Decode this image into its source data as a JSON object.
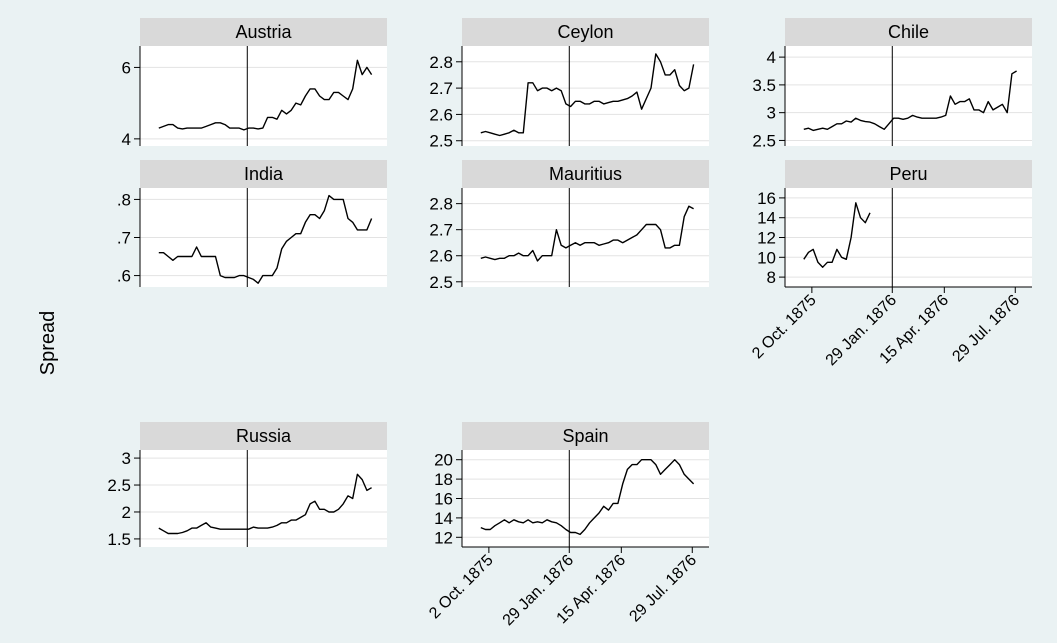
{
  "chart_data": {
    "type": "line",
    "layout": "small-multiples",
    "ylabel": "Spread",
    "xlabel": "",
    "x_ticks": [
      "2 Oct. 1875",
      "29 Jan. 1876",
      "15 Apr. 1876",
      "29 Jul. 1876"
    ],
    "event_line_x": "29 Jan. 1876",
    "grid": true,
    "line_color": "#000000",
    "background_color": "#eaf2f3",
    "panel_color": "#ffffff",
    "header_color": "#d9d9d9",
    "panels": [
      {
        "title": "Austria",
        "yticks": [
          "4",
          "6"
        ],
        "ytick_values": [
          4,
          6
        ],
        "ylim": [
          3.8,
          6.6
        ],
        "x": [
          "1875-09-20",
          "1875-09-27",
          "1875-10-04",
          "1875-10-11",
          "1875-10-18",
          "1875-10-25",
          "1875-11-01",
          "1875-11-08",
          "1875-11-15",
          "1875-11-22",
          "1875-11-29",
          "1875-12-06",
          "1875-12-13",
          "1875-12-20",
          "1875-12-27",
          "1876-01-03",
          "1876-01-10",
          "1876-01-17",
          "1876-01-24",
          "1876-01-31",
          "1876-02-07",
          "1876-02-14",
          "1876-02-21",
          "1876-02-28",
          "1876-03-06",
          "1876-03-13",
          "1876-03-20",
          "1876-03-27",
          "1876-04-03",
          "1876-04-10",
          "1876-04-17",
          "1876-04-24",
          "1876-05-01",
          "1876-05-08",
          "1876-05-15",
          "1876-05-22",
          "1876-05-29",
          "1876-06-05",
          "1876-06-12",
          "1876-06-19",
          "1876-06-26",
          "1876-07-03",
          "1876-07-10",
          "1876-07-17",
          "1876-07-24",
          "1876-07-31"
        ],
        "y": [
          4.3,
          4.35,
          4.4,
          4.4,
          4.3,
          4.28,
          4.3,
          4.3,
          4.3,
          4.3,
          4.35,
          4.4,
          4.45,
          4.45,
          4.4,
          4.3,
          4.3,
          4.3,
          4.25,
          4.3,
          4.3,
          4.28,
          4.3,
          4.6,
          4.6,
          4.55,
          4.8,
          4.7,
          4.8,
          5.0,
          4.95,
          5.2,
          5.4,
          5.4,
          5.2,
          5.1,
          5.1,
          5.3,
          5.3,
          5.2,
          5.1,
          5.4,
          6.2,
          5.8,
          6.0,
          5.8
        ]
      },
      {
        "title": "Ceylon",
        "yticks": [
          "2.5",
          "2.6",
          "2.7",
          "2.8"
        ],
        "ytick_values": [
          2.5,
          2.6,
          2.7,
          2.8
        ],
        "ylim": [
          2.48,
          2.86
        ],
        "x": [
          "1875-09-20",
          "1875-09-27",
          "1875-10-04",
          "1875-10-11",
          "1875-10-18",
          "1875-10-25",
          "1875-11-01",
          "1875-11-08",
          "1875-11-15",
          "1875-11-22",
          "1875-11-29",
          "1875-12-06",
          "1875-12-13",
          "1875-12-20",
          "1875-12-27",
          "1876-01-03",
          "1876-01-10",
          "1876-01-17",
          "1876-01-24",
          "1876-01-31",
          "1876-02-07",
          "1876-02-14",
          "1876-02-21",
          "1876-02-28",
          "1876-03-06",
          "1876-03-13",
          "1876-03-20",
          "1876-03-27",
          "1876-04-03",
          "1876-04-10",
          "1876-04-17",
          "1876-04-24",
          "1876-05-01",
          "1876-05-08",
          "1876-05-15",
          "1876-05-22",
          "1876-05-29",
          "1876-06-05",
          "1876-06-12",
          "1876-06-19",
          "1876-06-26",
          "1876-07-03",
          "1876-07-10",
          "1876-07-17",
          "1876-07-24",
          "1876-07-31"
        ],
        "y": [
          2.53,
          2.535,
          2.53,
          2.525,
          2.52,
          2.525,
          2.53,
          2.54,
          2.53,
          2.53,
          2.72,
          2.72,
          2.69,
          2.7,
          2.7,
          2.69,
          2.7,
          2.69,
          2.64,
          2.63,
          2.65,
          2.65,
          2.64,
          2.64,
          2.65,
          2.65,
          2.64,
          2.645,
          2.65,
          2.65,
          2.655,
          2.66,
          2.67,
          2.685,
          2.62,
          2.66,
          2.7,
          2.83,
          2.8,
          2.75,
          2.75,
          2.77,
          2.71,
          2.69,
          2.7,
          2.79
        ]
      },
      {
        "title": "Chile",
        "yticks": [
          "2.5",
          "3",
          "3.5",
          "4"
        ],
        "ytick_values": [
          2.5,
          3,
          3.5,
          4
        ],
        "ylim": [
          2.4,
          4.2
        ],
        "x": [
          "1875-09-20",
          "1875-09-27",
          "1875-10-04",
          "1875-10-11",
          "1875-10-18",
          "1875-10-25",
          "1875-11-01",
          "1875-11-08",
          "1875-11-15",
          "1875-11-22",
          "1875-11-29",
          "1875-12-06",
          "1875-12-13",
          "1875-12-20",
          "1875-12-27",
          "1876-01-03",
          "1876-01-10",
          "1876-01-17",
          "1876-01-24",
          "1876-01-31",
          "1876-02-07",
          "1876-02-14",
          "1876-02-21",
          "1876-02-28",
          "1876-03-06",
          "1876-03-13",
          "1876-03-20",
          "1876-03-27",
          "1876-04-03",
          "1876-04-10",
          "1876-04-17",
          "1876-04-24",
          "1876-05-01",
          "1876-05-08",
          "1876-05-15",
          "1876-05-22",
          "1876-05-29",
          "1876-06-05",
          "1876-06-12",
          "1876-06-19",
          "1876-06-26",
          "1876-07-03",
          "1876-07-10",
          "1876-07-17",
          "1876-07-24",
          "1876-07-31"
        ],
        "y": [
          2.7,
          2.72,
          2.68,
          2.7,
          2.72,
          2.7,
          2.75,
          2.8,
          2.8,
          2.85,
          2.83,
          2.9,
          2.86,
          2.84,
          2.83,
          2.8,
          2.75,
          2.7,
          2.8,
          2.9,
          2.9,
          2.88,
          2.9,
          2.95,
          2.92,
          2.9,
          2.9,
          2.9,
          2.9,
          2.92,
          2.95,
          3.3,
          3.15,
          3.2,
          3.2,
          3.25,
          3.05,
          3.05,
          3.0,
          3.2,
          3.05,
          3.1,
          3.15,
          3.0,
          3.7,
          3.75
        ]
      },
      {
        "title": "India",
        "yticks": [
          ".6",
          ".7",
          ".8"
        ],
        "ytick_values": [
          0.6,
          0.7,
          0.8
        ],
        "ylim": [
          0.57,
          0.83
        ],
        "x": [
          "1875-09-20",
          "1875-09-27",
          "1875-10-04",
          "1875-10-11",
          "1875-10-18",
          "1875-10-25",
          "1875-11-01",
          "1875-11-08",
          "1875-11-15",
          "1875-11-22",
          "1875-11-29",
          "1875-12-06",
          "1875-12-13",
          "1875-12-20",
          "1875-12-27",
          "1876-01-03",
          "1876-01-10",
          "1876-01-17",
          "1876-01-24",
          "1876-01-31",
          "1876-02-07",
          "1876-02-14",
          "1876-02-21",
          "1876-02-28",
          "1876-03-06",
          "1876-03-13",
          "1876-03-20",
          "1876-03-27",
          "1876-04-03",
          "1876-04-10",
          "1876-04-17",
          "1876-04-24",
          "1876-05-01",
          "1876-05-08",
          "1876-05-15",
          "1876-05-22",
          "1876-05-29",
          "1876-06-05",
          "1876-06-12",
          "1876-06-19",
          "1876-06-26",
          "1876-07-03",
          "1876-07-10",
          "1876-07-17",
          "1876-07-24",
          "1876-07-31"
        ],
        "y": [
          0.66,
          0.66,
          0.65,
          0.64,
          0.65,
          0.65,
          0.65,
          0.65,
          0.675,
          0.65,
          0.65,
          0.65,
          0.65,
          0.6,
          0.595,
          0.595,
          0.595,
          0.6,
          0.6,
          0.595,
          0.59,
          0.58,
          0.6,
          0.6,
          0.6,
          0.62,
          0.67,
          0.69,
          0.7,
          0.71,
          0.71,
          0.74,
          0.76,
          0.76,
          0.75,
          0.77,
          0.81,
          0.8,
          0.8,
          0.8,
          0.75,
          0.74,
          0.72,
          0.72,
          0.72,
          0.75
        ]
      },
      {
        "title": "Mauritius",
        "yticks": [
          "2.5",
          "2.6",
          "2.7",
          "2.8"
        ],
        "ytick_values": [
          2.5,
          2.6,
          2.7,
          2.8
        ],
        "ylim": [
          2.48,
          2.86
        ],
        "x": [
          "1875-09-20",
          "1875-09-27",
          "1875-10-04",
          "1875-10-11",
          "1875-10-18",
          "1875-10-25",
          "1875-11-01",
          "1875-11-08",
          "1875-11-15",
          "1875-11-22",
          "1875-11-29",
          "1875-12-06",
          "1875-12-13",
          "1875-12-20",
          "1875-12-27",
          "1876-01-03",
          "1876-01-10",
          "1876-01-17",
          "1876-01-24",
          "1876-01-31",
          "1876-02-07",
          "1876-02-14",
          "1876-02-21",
          "1876-02-28",
          "1876-03-06",
          "1876-03-13",
          "1876-03-20",
          "1876-03-27",
          "1876-04-03",
          "1876-04-10",
          "1876-04-17",
          "1876-04-24",
          "1876-05-01",
          "1876-05-08",
          "1876-05-15",
          "1876-05-22",
          "1876-05-29",
          "1876-06-05",
          "1876-06-12",
          "1876-06-19",
          "1876-06-26",
          "1876-07-03",
          "1876-07-10",
          "1876-07-17",
          "1876-07-24",
          "1876-07-31"
        ],
        "y": [
          2.59,
          2.595,
          2.59,
          2.585,
          2.59,
          2.59,
          2.6,
          2.6,
          2.61,
          2.6,
          2.6,
          2.62,
          2.58,
          2.6,
          2.6,
          2.6,
          2.7,
          2.64,
          2.63,
          2.64,
          2.65,
          2.64,
          2.65,
          2.65,
          2.65,
          2.64,
          2.645,
          2.65,
          2.66,
          2.66,
          2.65,
          2.66,
          2.67,
          2.68,
          2.7,
          2.72,
          2.72,
          2.72,
          2.7,
          2.63,
          2.63,
          2.64,
          2.64,
          2.75,
          2.79,
          2.78
        ]
      },
      {
        "title": "Peru",
        "yticks": [
          "8",
          "10",
          "12",
          "14",
          "16"
        ],
        "ytick_values": [
          8,
          10,
          12,
          14,
          16
        ],
        "ylim": [
          7,
          17
        ],
        "x": [
          "1875-09-20",
          "1875-09-27",
          "1875-10-04",
          "1875-10-11",
          "1875-10-18",
          "1875-10-25",
          "1875-11-01",
          "1875-11-08",
          "1875-11-15",
          "1875-11-22",
          "1875-11-29",
          "1875-12-06",
          "1875-12-13",
          "1875-12-20",
          "1875-12-27"
        ],
        "y": [
          9.8,
          10.5,
          10.8,
          9.5,
          9.0,
          9.5,
          9.5,
          10.8,
          10.0,
          9.8,
          12.0,
          15.5,
          14.0,
          13.5,
          14.5
        ],
        "show_x_tick_labels": true
      },
      {
        "title": "Russia",
        "yticks": [
          "1.5",
          "2",
          "2.5",
          "3"
        ],
        "ytick_values": [
          1.5,
          2,
          2.5,
          3
        ],
        "ylim": [
          1.35,
          3.15
        ],
        "x": [
          "1875-09-20",
          "1875-09-27",
          "1875-10-04",
          "1875-10-11",
          "1875-10-18",
          "1875-10-25",
          "1875-11-01",
          "1875-11-08",
          "1875-11-15",
          "1875-11-22",
          "1875-11-29",
          "1875-12-06",
          "1875-12-13",
          "1875-12-20",
          "1875-12-27",
          "1876-01-03",
          "1876-01-10",
          "1876-01-17",
          "1876-01-24",
          "1876-01-31",
          "1876-02-07",
          "1876-02-14",
          "1876-02-21",
          "1876-02-28",
          "1876-03-06",
          "1876-03-13",
          "1876-03-20",
          "1876-03-27",
          "1876-04-03",
          "1876-04-10",
          "1876-04-17",
          "1876-04-24",
          "1876-05-01",
          "1876-05-08",
          "1876-05-15",
          "1876-05-22",
          "1876-05-29",
          "1876-06-05",
          "1876-06-12",
          "1876-06-19",
          "1876-06-26",
          "1876-07-03",
          "1876-07-10",
          "1876-07-17",
          "1876-07-24",
          "1876-07-31"
        ],
        "y": [
          1.7,
          1.65,
          1.6,
          1.6,
          1.6,
          1.62,
          1.65,
          1.7,
          1.7,
          1.75,
          1.8,
          1.72,
          1.7,
          1.68,
          1.68,
          1.68,
          1.68,
          1.68,
          1.68,
          1.68,
          1.72,
          1.7,
          1.7,
          1.7,
          1.72,
          1.75,
          1.8,
          1.8,
          1.85,
          1.85,
          1.9,
          1.95,
          2.15,
          2.2,
          2.05,
          2.05,
          2.0,
          2.0,
          2.05,
          2.15,
          2.3,
          2.25,
          2.7,
          2.6,
          2.4,
          2.45
        ]
      },
      {
        "title": "Spain",
        "yticks": [
          "12",
          "14",
          "16",
          "18",
          "20"
        ],
        "ytick_values": [
          12,
          14,
          16,
          18,
          20
        ],
        "ylim": [
          11,
          21
        ],
        "x": [
          "1875-09-20",
          "1875-09-27",
          "1875-10-04",
          "1875-10-11",
          "1875-10-18",
          "1875-10-25",
          "1875-11-01",
          "1875-11-08",
          "1875-11-15",
          "1875-11-22",
          "1875-11-29",
          "1875-12-06",
          "1875-12-13",
          "1875-12-20",
          "1875-12-27",
          "1876-01-03",
          "1876-01-10",
          "1876-01-17",
          "1876-01-24",
          "1876-01-31",
          "1876-02-07",
          "1876-02-14",
          "1876-02-21",
          "1876-02-28",
          "1876-03-06",
          "1876-03-13",
          "1876-03-20",
          "1876-03-27",
          "1876-04-03",
          "1876-04-10",
          "1876-04-17",
          "1876-04-24",
          "1876-05-01",
          "1876-05-08",
          "1876-05-15",
          "1876-05-22",
          "1876-05-29",
          "1876-06-05",
          "1876-06-12",
          "1876-06-19",
          "1876-06-26",
          "1876-07-03",
          "1876-07-10",
          "1876-07-17",
          "1876-07-24",
          "1876-07-31"
        ],
        "y": [
          13.0,
          12.8,
          12.8,
          13.2,
          13.5,
          13.8,
          13.5,
          13.8,
          13.6,
          13.5,
          13.8,
          13.5,
          13.6,
          13.5,
          13.8,
          13.6,
          13.5,
          13.2,
          12.8,
          12.5,
          12.5,
          12.3,
          12.8,
          13.5,
          14.0,
          14.5,
          15.2,
          14.8,
          15.5,
          15.5,
          17.5,
          19.0,
          19.5,
          19.5,
          20.0,
          20.0,
          20.0,
          19.5,
          18.5,
          19.0,
          19.5,
          20.0,
          19.5,
          18.5,
          18.0,
          17.5
        ],
        "show_x_tick_labels": true
      }
    ]
  }
}
